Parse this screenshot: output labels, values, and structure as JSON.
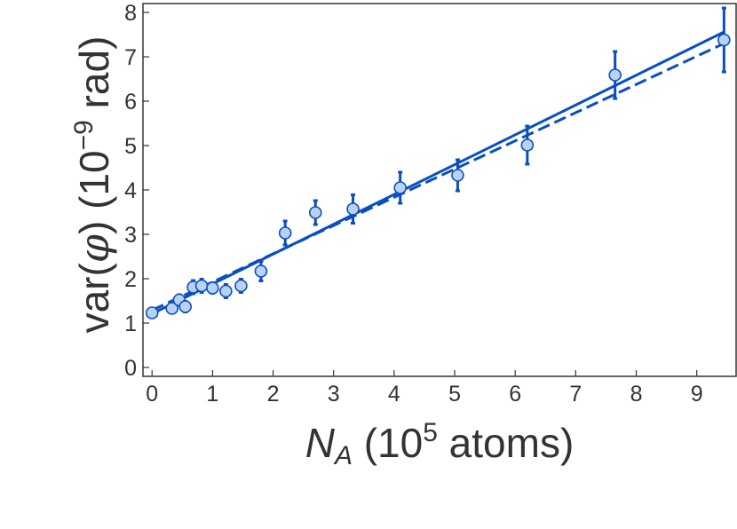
{
  "chart_data": {
    "type": "scatter",
    "xlabel_parts": {
      "var": "N",
      "sub": "A",
      "open": " (10",
      "exp": "5",
      "unit": " atoms)"
    },
    "ylabel_parts": {
      "pre": "var(",
      "phi": "φ",
      "mid": ") (10",
      "exp": "−9",
      "unit": " rad)"
    },
    "xlim": [
      -0.15,
      9.65
    ],
    "ylim": [
      -0.2,
      8.2
    ],
    "xticks": [
      0,
      1,
      2,
      3,
      4,
      5,
      6,
      7,
      8,
      9
    ],
    "yticks": [
      0,
      1,
      2,
      3,
      4,
      5,
      6,
      7,
      8
    ],
    "grid": false,
    "legend": "none",
    "colors": {
      "line": "#0a4fc0",
      "marker_fill": "#b9d2f0",
      "marker_edge": "#0a4fc0",
      "axis": "#333333"
    },
    "series": [
      {
        "kind": "points_with_errorbars",
        "points": [
          {
            "x": 0.0,
            "y": 1.23,
            "err": 0.0
          },
          {
            "x": 0.33,
            "y": 1.33,
            "err": 0.0
          },
          {
            "x": 0.45,
            "y": 1.52,
            "err": 0.12
          },
          {
            "x": 0.55,
            "y": 1.37,
            "err": 0.12
          },
          {
            "x": 0.68,
            "y": 1.81,
            "err": 0.15
          },
          {
            "x": 0.82,
            "y": 1.84,
            "err": 0.15
          },
          {
            "x": 1.0,
            "y": 1.79,
            "err": 0.12
          },
          {
            "x": 1.22,
            "y": 1.72,
            "err": 0.15
          },
          {
            "x": 1.47,
            "y": 1.84,
            "err": 0.15
          },
          {
            "x": 1.8,
            "y": 2.17,
            "err": 0.22
          },
          {
            "x": 2.2,
            "y": 3.03,
            "err": 0.27
          },
          {
            "x": 2.7,
            "y": 3.49,
            "err": 0.27
          },
          {
            "x": 3.32,
            "y": 3.57,
            "err": 0.32
          },
          {
            "x": 4.1,
            "y": 4.05,
            "err": 0.35
          },
          {
            "x": 5.05,
            "y": 4.33,
            "err": 0.35
          },
          {
            "x": 6.2,
            "y": 5.01,
            "err": 0.43
          },
          {
            "x": 7.65,
            "y": 6.59,
            "err": 0.53
          },
          {
            "x": 9.45,
            "y": 7.38,
            "err": 0.72
          }
        ]
      },
      {
        "kind": "fit_line",
        "style": "solid",
        "x": [
          0.0,
          9.45
        ],
        "y": [
          1.21,
          7.56
        ]
      },
      {
        "kind": "fit_line",
        "style": "dashed",
        "x": [
          0.0,
          9.45
        ],
        "y": [
          1.29,
          7.3
        ]
      }
    ]
  }
}
